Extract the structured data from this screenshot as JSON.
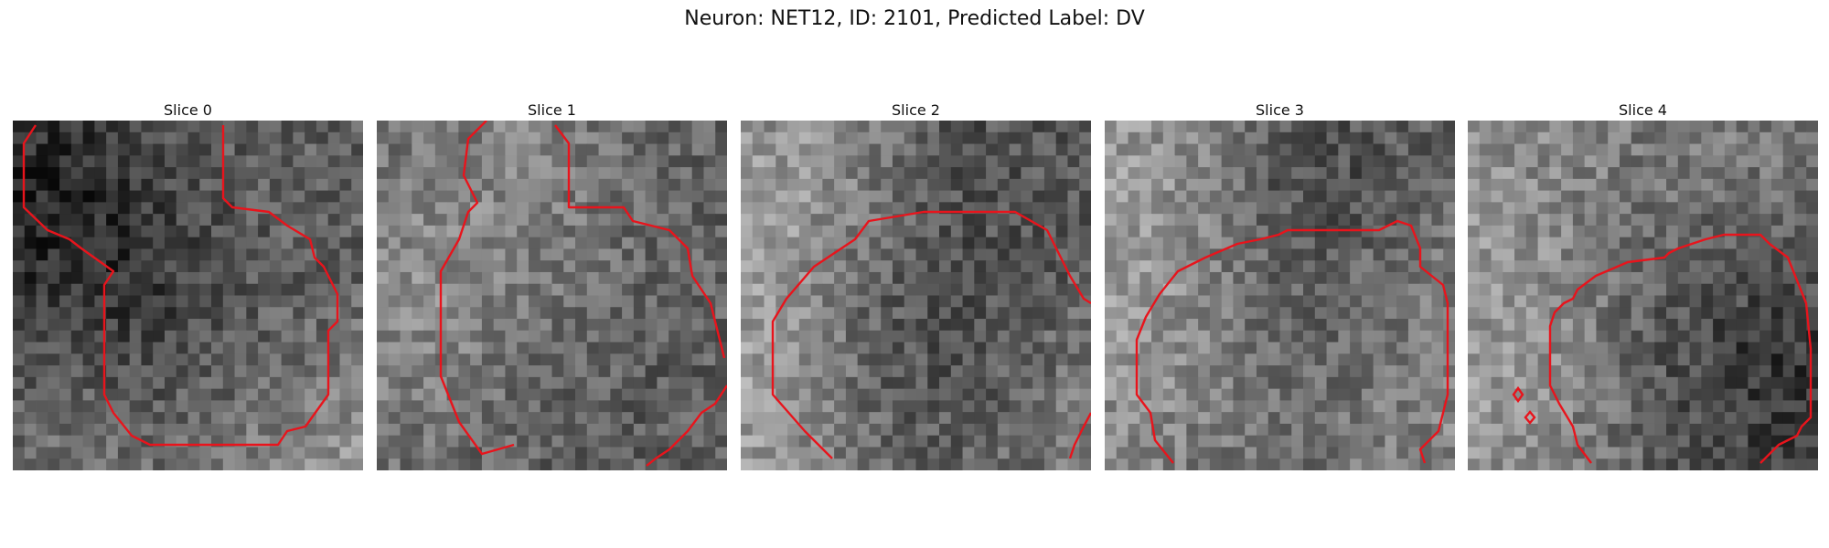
{
  "figure": {
    "title": "Neuron: NET12, ID: 2101, Predicted Label: DV",
    "colors": {
      "contour": "#e8141c",
      "background": "#ffffff",
      "image_colormap": "grayscale"
    }
  },
  "panels": [
    {
      "title": "Slice 0"
    },
    {
      "title": "Slice 1"
    },
    {
      "title": "Slice 2"
    },
    {
      "title": "Slice 3"
    },
    {
      "title": "Slice 4"
    }
  ]
}
